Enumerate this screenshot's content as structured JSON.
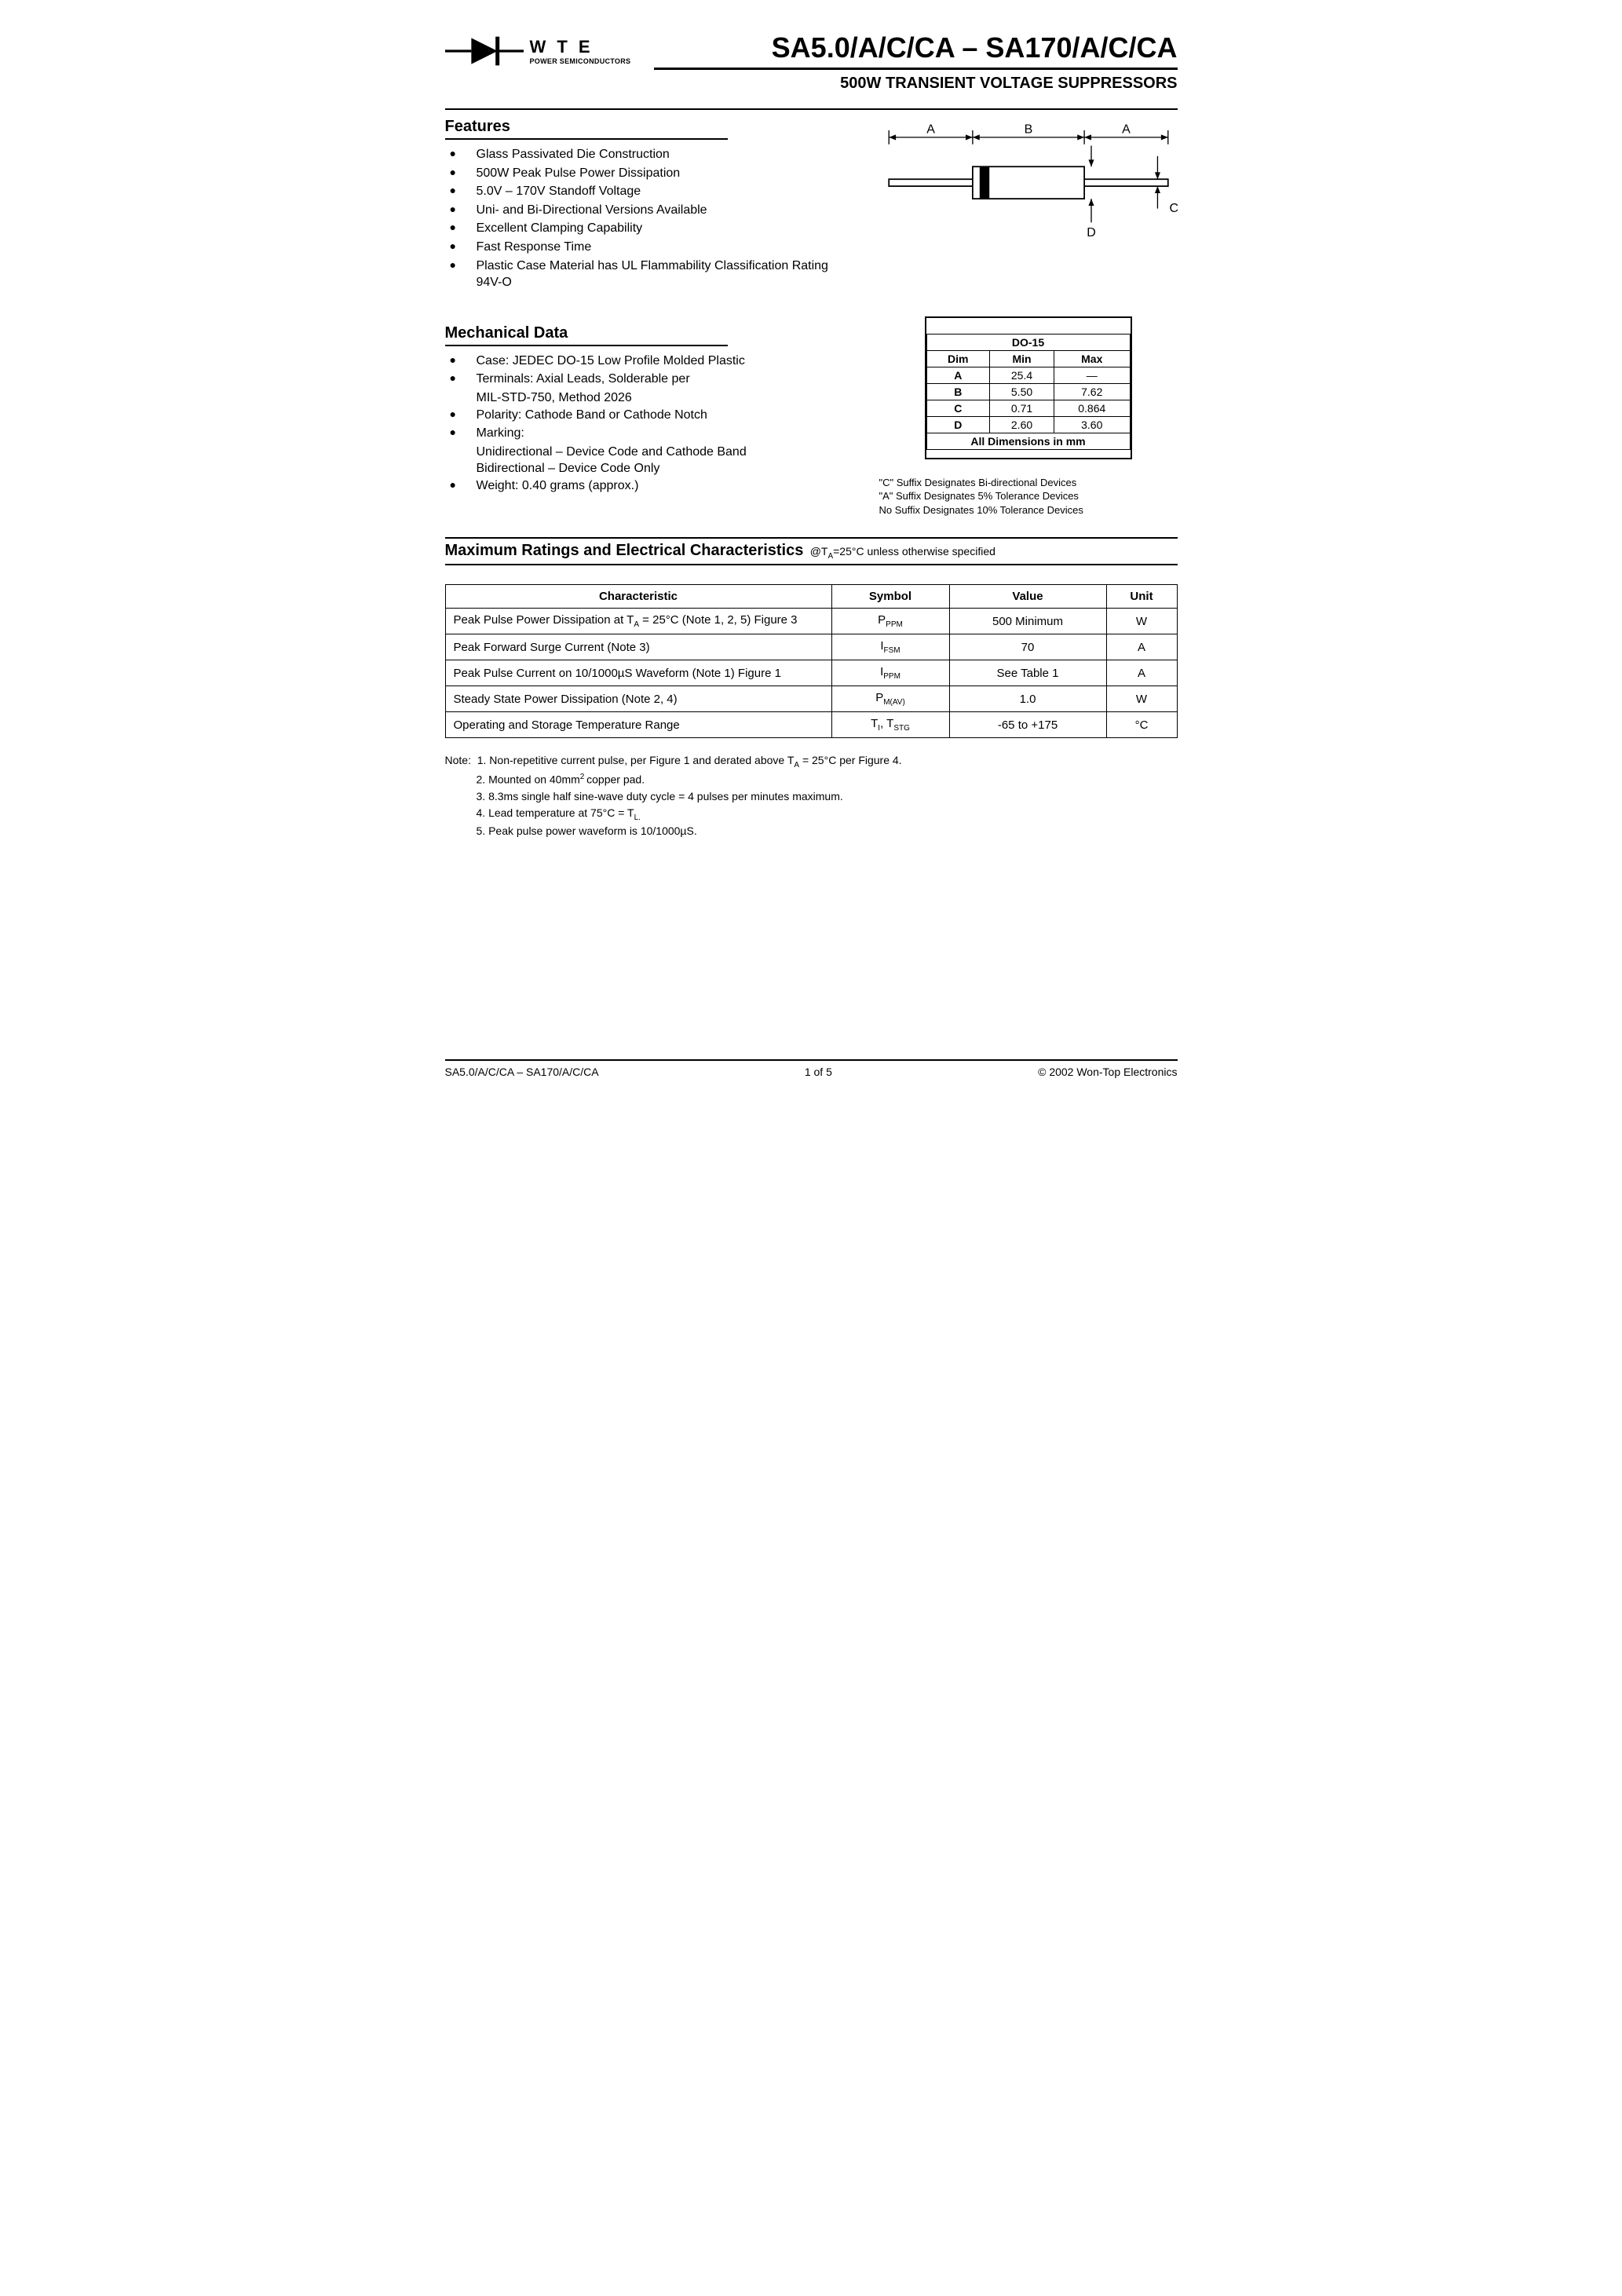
{
  "logo": {
    "wte": "W T E",
    "sub": "POWER SEMICONDUCTORS"
  },
  "title": {
    "main": "SA5.0/A/C/CA – SA170/A/C/CA",
    "sub": "500W TRANSIENT VOLTAGE SUPPRESSORS"
  },
  "features": {
    "heading": "Features",
    "items": [
      "Glass Passivated Die Construction",
      "500W Peak Pulse Power Dissipation",
      "5.0V – 170V Standoff Voltage",
      "Uni- and Bi-Directional Versions Available",
      "Excellent Clamping Capability",
      "Fast Response Time",
      "Plastic Case Material has UL Flammability Classification Rating 94V-O"
    ]
  },
  "mechanical": {
    "heading": "Mechanical Data",
    "items": [
      {
        "main": "Case: JEDEC DO-15 Low Profile Molded Plastic"
      },
      {
        "main": "Terminals: Axial Leads, Solderable per",
        "sub": "MIL-STD-750, Method 2026"
      },
      {
        "main": "Polarity: Cathode Band or Cathode Notch"
      },
      {
        "main": "Marking:",
        "sub": "Unidirectional – Device Code and Cathode Band",
        "sub2": "Bidirectional – Device Code Only"
      },
      {
        "main": "Weight: 0.40 grams (approx.)"
      }
    ]
  },
  "package_diagram": {
    "labels": {
      "A": "A",
      "B": "B",
      "C": "C",
      "D": "D"
    },
    "colors": {
      "line": "#000000",
      "body_fill": "#ffffff",
      "band_fill": "#000000"
    }
  },
  "dim_table": {
    "caption": "DO-15",
    "headers": [
      "Dim",
      "Min",
      "Max"
    ],
    "rows": [
      [
        "A",
        "25.4",
        "—"
      ],
      [
        "B",
        "5.50",
        "7.62"
      ],
      [
        "C",
        "0.71",
        "0.864"
      ],
      [
        "D",
        "2.60",
        "3.60"
      ]
    ],
    "footer": "All Dimensions in mm"
  },
  "suffix_notes": [
    "\"C\" Suffix Designates Bi-directional Devices",
    "\"A\" Suffix Designates 5% Tolerance Devices",
    "No Suffix Designates 10% Tolerance Devices"
  ],
  "ratings": {
    "heading": "Maximum Ratings and Electrical Characteristics",
    "condition_prefix": "@T",
    "condition_sub": "A",
    "condition_rest": "=25°C unless otherwise specified",
    "headers": [
      "Characteristic",
      "Symbol",
      "Value",
      "Unit"
    ],
    "rows": [
      {
        "char_pre": "Peak Pulse Power Dissipation at T",
        "char_sub": "A",
        "char_post": " = 25°C (Note 1, 2, 5) Figure 3",
        "sym_main": "P",
        "sym_sub": "PPM",
        "value": "500 Minimum",
        "unit": "W"
      },
      {
        "char_pre": "Peak Forward Surge Current (Note 3)",
        "char_sub": "",
        "char_post": "",
        "sym_main": "I",
        "sym_sub": "FSM",
        "value": "70",
        "unit": "A"
      },
      {
        "char_pre": "Peak Pulse Current on 10/1000µS Waveform (Note 1) Figure 1",
        "char_sub": "",
        "char_post": "",
        "sym_main": "I",
        "sym_sub": "PPM",
        "value": "See Table 1",
        "unit": "A"
      },
      {
        "char_pre": "Steady State Power Dissipation (Note 2, 4)",
        "char_sub": "",
        "char_post": "",
        "sym_main": "P",
        "sym_sub": "M(AV)",
        "value": "1.0",
        "unit": "W"
      },
      {
        "char_pre": "Operating and Storage Temperature Range",
        "char_sub": "",
        "char_post": "",
        "sym_main": "T",
        "sym_sub": "I",
        "sym2_main": ", T",
        "sym2_sub": "STG",
        "value": "-65 to +175",
        "unit": "°C"
      }
    ]
  },
  "notes": {
    "lead": "Note:",
    "items": [
      {
        "num": "1.",
        "text_pre": "Non-repetitive current pulse, per Figure 1 and derated above T",
        "text_sub": "A",
        "text_post": " = 25°C per Figure 4."
      },
      {
        "num": "2.",
        "text_pre": "Mounted on 40mm",
        "text_sup": "2 ",
        "text_post": "copper pad."
      },
      {
        "num": "3.",
        "text_pre": "8.3ms single half sine-wave duty cycle = 4 pulses per minutes maximum.",
        "text_post": ""
      },
      {
        "num": "4.",
        "text_pre": "Lead temperature at 75°C = T",
        "text_sub": "L.",
        "text_post": ""
      },
      {
        "num": "5.",
        "text_pre": "Peak pulse power waveform is 10/1000µS.",
        "text_post": ""
      }
    ]
  },
  "footer": {
    "left": "SA5.0/A/C/CA – SA170/A/C/CA",
    "center": "1  of  5",
    "right": "© 2002 Won-Top Electronics"
  }
}
